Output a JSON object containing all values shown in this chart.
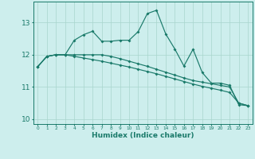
{
  "xlabel": "Humidex (Indice chaleur)",
  "bg_color": "#cdeeed",
  "grid_color": "#a8d5cc",
  "line_color": "#1a7a6a",
  "xlim": [
    -0.5,
    23.5
  ],
  "ylim": [
    9.85,
    13.65
  ],
  "xticks": [
    0,
    1,
    2,
    3,
    4,
    5,
    6,
    7,
    8,
    9,
    10,
    11,
    12,
    13,
    14,
    15,
    16,
    17,
    18,
    19,
    20,
    21,
    22,
    23
  ],
  "yticks": [
    10,
    11,
    12,
    13
  ],
  "s1_x": [
    0,
    1,
    2,
    3,
    4,
    5,
    6,
    7,
    8,
    9,
    10,
    11,
    12,
    13,
    14,
    15,
    16,
    17,
    18,
    19,
    20,
    21,
    22,
    23
  ],
  "s1_y": [
    11.63,
    11.95,
    12.0,
    12.0,
    12.45,
    12.62,
    12.73,
    12.42,
    12.42,
    12.45,
    12.45,
    12.72,
    13.28,
    13.38,
    12.65,
    12.18,
    11.65,
    12.17,
    11.45,
    11.12,
    11.12,
    11.05,
    10.45,
    10.42
  ],
  "s2_x": [
    0,
    1,
    2,
    3,
    4,
    5,
    6,
    7,
    8,
    9,
    10,
    11,
    12,
    13,
    14,
    15,
    16,
    17,
    18,
    19,
    20,
    21,
    22,
    23
  ],
  "s2_y": [
    11.63,
    11.95,
    12.0,
    12.0,
    12.0,
    12.0,
    12.0,
    12.0,
    11.95,
    11.88,
    11.8,
    11.72,
    11.64,
    11.55,
    11.46,
    11.37,
    11.28,
    11.2,
    11.15,
    11.1,
    11.05,
    11.0,
    10.5,
    10.42
  ],
  "s3_x": [
    0,
    1,
    2,
    3,
    4,
    5,
    6,
    7,
    8,
    9,
    10,
    11,
    12,
    13,
    14,
    15,
    16,
    17,
    18,
    19,
    20,
    21,
    22,
    23
  ],
  "s3_y": [
    11.63,
    11.95,
    12.0,
    12.0,
    11.95,
    11.9,
    11.85,
    11.8,
    11.74,
    11.68,
    11.62,
    11.55,
    11.48,
    11.41,
    11.33,
    11.25,
    11.17,
    11.09,
    11.02,
    10.96,
    10.9,
    10.83,
    10.5,
    10.42
  ]
}
